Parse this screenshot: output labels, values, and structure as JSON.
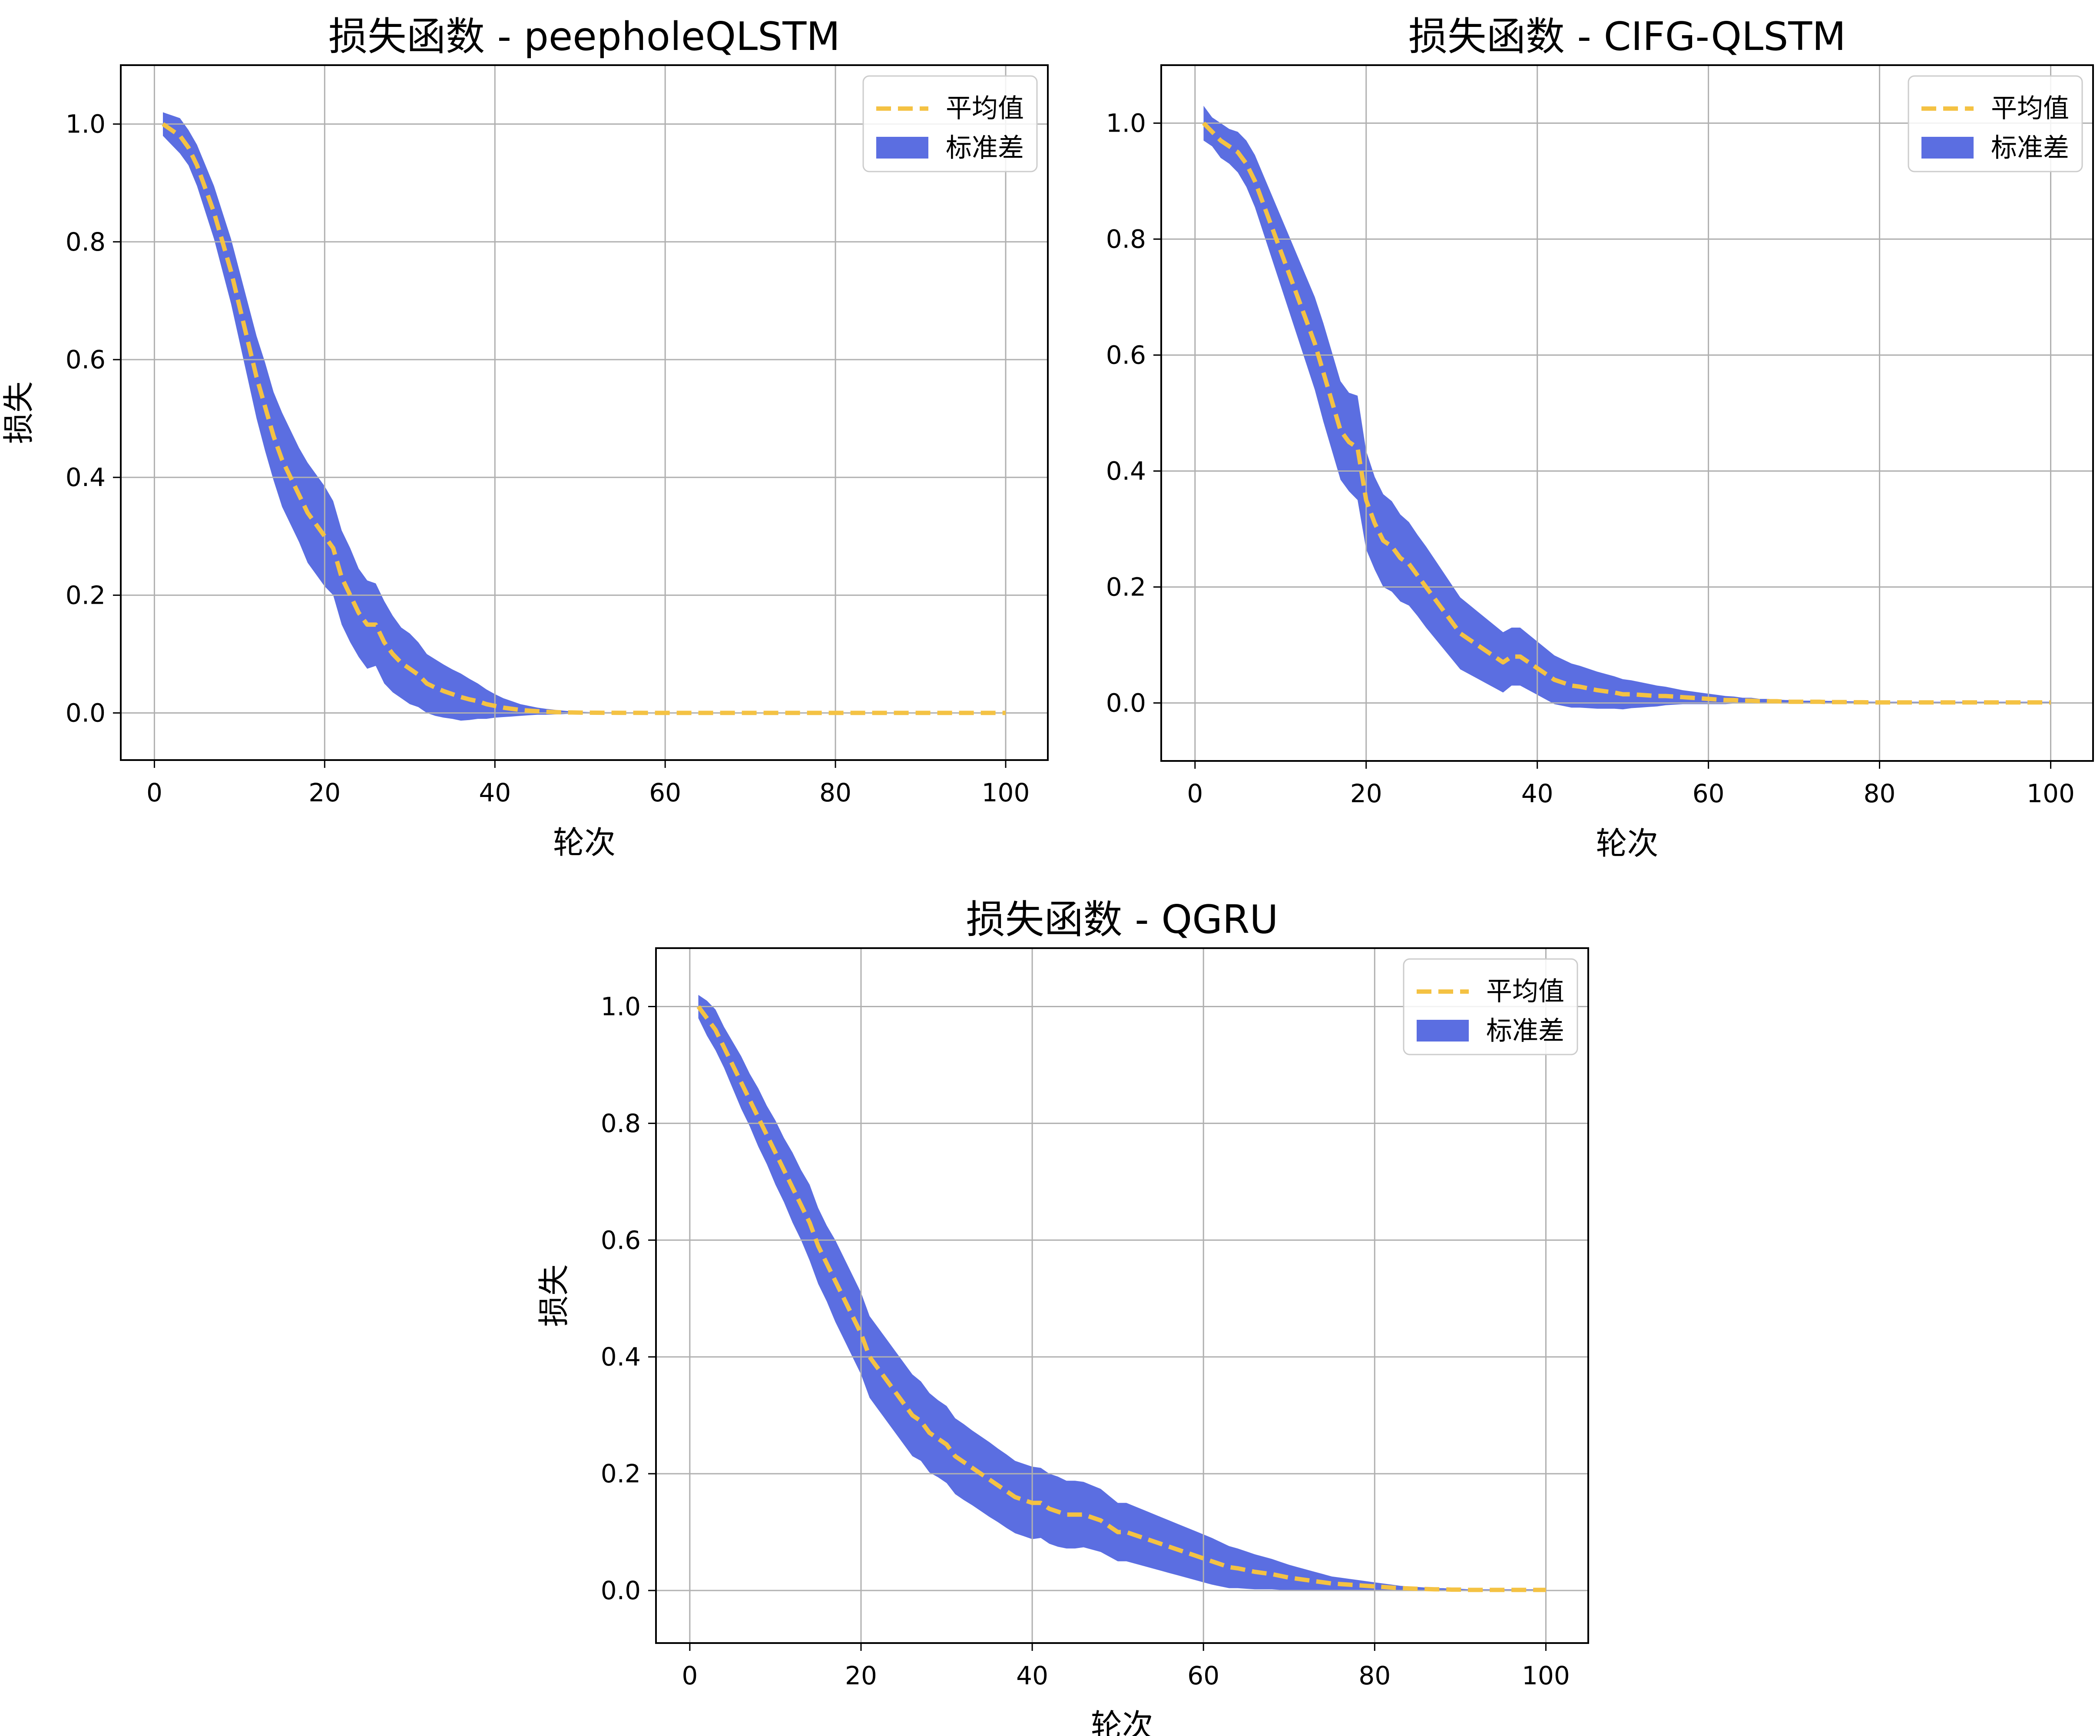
{
  "figure": {
    "band_color": "#5b6ee1",
    "mean_color": "#f4c243",
    "grid_color": "#b0b0b0"
  },
  "chart_data": [
    {
      "type": "line",
      "title": "损失函数 - peepholeQLSTM",
      "xlabel": "轮次",
      "ylabel": "损失",
      "xlim": [
        -3.95,
        104.95
      ],
      "ylim": [
        -0.08,
        1.1
      ],
      "xticks": [
        0,
        20,
        40,
        60,
        80,
        100
      ],
      "xtick_labels": [
        "0",
        "20",
        "40",
        "60",
        "80",
        "100"
      ],
      "yticks": [
        0.0,
        0.2,
        0.4,
        0.6,
        0.8,
        1.0
      ],
      "ytick_labels": [
        "0.0",
        "0.2",
        "0.4",
        "0.6",
        "0.8",
        "1.0"
      ],
      "grid": true,
      "legend_position": "top-right",
      "legend": {
        "mean_label": "平均值",
        "std_label": "标准差"
      },
      "x_start": 1,
      "x_end": 100,
      "mean": [
        1.0,
        0.99,
        0.98,
        0.96,
        0.93,
        0.89,
        0.85,
        0.8,
        0.75,
        0.69,
        0.63,
        0.57,
        0.52,
        0.47,
        0.43,
        0.4,
        0.37,
        0.34,
        0.32,
        0.3,
        0.28,
        0.23,
        0.2,
        0.17,
        0.15,
        0.15,
        0.12,
        0.1,
        0.085,
        0.075,
        0.065,
        0.05,
        0.043,
        0.037,
        0.032,
        0.027,
        0.023,
        0.02,
        0.015,
        0.012,
        0.009,
        0.007,
        0.005,
        0.004,
        0.003,
        0.002,
        0.0015,
        0.001,
        0.0008,
        0.0006,
        0.0005,
        0.0004,
        0.0003,
        0.0003,
        0.0002,
        0.0002,
        0.0002,
        0.0001,
        0.0001,
        0.0001,
        0.0001,
        0.0001,
        0.0001,
        0.0001,
        0.0001,
        0.0001,
        0.0001,
        0.0001,
        0.0001,
        0.0001,
        0.0001,
        0.0001,
        0.0001,
        0.0001,
        0.0001,
        0.0001,
        0.0001,
        0.0001,
        0.0001,
        0.0001,
        0.0001,
        0.0001,
        0.0001,
        0.0001,
        0.0001,
        0.0001,
        0.0001,
        0.0001,
        0.0001,
        0.0001,
        0.0001,
        0.0001,
        0.0001,
        0.0001,
        0.0001,
        0.0001,
        0.0001,
        0.0001,
        0.0001,
        0.0001
      ],
      "std": [
        0.02,
        0.025,
        0.03,
        0.03,
        0.035,
        0.04,
        0.045,
        0.05,
        0.055,
        0.06,
        0.065,
        0.07,
        0.075,
        0.075,
        0.08,
        0.08,
        0.08,
        0.085,
        0.085,
        0.085,
        0.08,
        0.08,
        0.08,
        0.075,
        0.075,
        0.07,
        0.07,
        0.065,
        0.06,
        0.06,
        0.055,
        0.05,
        0.048,
        0.045,
        0.042,
        0.04,
        0.035,
        0.03,
        0.025,
        0.02,
        0.016,
        0.013,
        0.01,
        0.008,
        0.006,
        0.005,
        0.004,
        0.003,
        0.002,
        0.0015,
        0.001,
        0.001,
        0.001,
        0.001,
        0.001,
        0.001,
        0.001,
        0.001,
        0.001,
        0.001,
        0.001,
        0.001,
        0.001,
        0.001,
        0.001,
        0.001,
        0.001,
        0.001,
        0.001,
        0.001,
        0.001,
        0.001,
        0.001,
        0.001,
        0.001,
        0.001,
        0.001,
        0.001,
        0.001,
        0.001,
        0.001,
        0.001,
        0.001,
        0.001,
        0.001,
        0.001,
        0.001,
        0.001,
        0.001,
        0.001,
        0.001,
        0.001,
        0.001,
        0.001,
        0.001,
        0.001,
        0.001,
        0.001,
        0.001,
        0.001
      ]
    },
    {
      "type": "line",
      "title": "损失函数 - CIFG-QLSTM",
      "xlabel": "轮次",
      "ylabel": "",
      "xlim": [
        -3.95,
        104.95
      ],
      "ylim": [
        -0.1,
        1.1
      ],
      "xticks": [
        0,
        20,
        40,
        60,
        80,
        100
      ],
      "xtick_labels": [
        "0",
        "20",
        "40",
        "60",
        "80",
        "100"
      ],
      "yticks": [
        0.0,
        0.2,
        0.4,
        0.6,
        0.8,
        1.0
      ],
      "ytick_labels": [
        "0.0",
        "0.2",
        "0.4",
        "0.6",
        "0.8",
        "1.0"
      ],
      "grid": true,
      "legend_position": "top-right",
      "legend": {
        "mean_label": "平均值",
        "std_label": "标准差"
      },
      "x_start": 1,
      "x_end": 100,
      "mean": [
        1.0,
        0.985,
        0.97,
        0.96,
        0.95,
        0.93,
        0.9,
        0.86,
        0.82,
        0.78,
        0.74,
        0.7,
        0.66,
        0.62,
        0.57,
        0.52,
        0.47,
        0.45,
        0.44,
        0.35,
        0.31,
        0.28,
        0.27,
        0.25,
        0.24,
        0.22,
        0.2,
        0.18,
        0.16,
        0.14,
        0.12,
        0.11,
        0.1,
        0.09,
        0.08,
        0.07,
        0.08,
        0.08,
        0.07,
        0.06,
        0.05,
        0.04,
        0.035,
        0.03,
        0.028,
        0.025,
        0.022,
        0.02,
        0.018,
        0.015,
        0.015,
        0.014,
        0.013,
        0.012,
        0.012,
        0.011,
        0.01,
        0.009,
        0.008,
        0.007,
        0.006,
        0.005,
        0.005,
        0.004,
        0.004,
        0.003,
        0.003,
        0.003,
        0.002,
        0.002,
        0.002,
        0.002,
        0.002,
        0.0015,
        0.0015,
        0.0015,
        0.0012,
        0.0012,
        0.001,
        0.001,
        0.001,
        0.001,
        0.001,
        0.001,
        0.001,
        0.001,
        0.001,
        0.001,
        0.001,
        0.001,
        0.001,
        0.001,
        0.001,
        0.001,
        0.001,
        0.001,
        0.001,
        0.001,
        0.001,
        0.001
      ],
      "std": [
        0.03,
        0.025,
        0.03,
        0.03,
        0.035,
        0.04,
        0.045,
        0.05,
        0.055,
        0.06,
        0.065,
        0.07,
        0.075,
        0.08,
        0.085,
        0.085,
        0.085,
        0.085,
        0.09,
        0.085,
        0.08,
        0.08,
        0.078,
        0.075,
        0.072,
        0.07,
        0.07,
        0.068,
        0.066,
        0.064,
        0.062,
        0.06,
        0.058,
        0.056,
        0.054,
        0.052,
        0.05,
        0.05,
        0.048,
        0.046,
        0.044,
        0.042,
        0.04,
        0.038,
        0.036,
        0.034,
        0.032,
        0.03,
        0.028,
        0.026,
        0.024,
        0.022,
        0.02,
        0.018,
        0.016,
        0.014,
        0.012,
        0.011,
        0.01,
        0.009,
        0.008,
        0.007,
        0.006,
        0.005,
        0.005,
        0.004,
        0.004,
        0.003,
        0.003,
        0.003,
        0.002,
        0.002,
        0.002,
        0.002,
        0.002,
        0.0015,
        0.0015,
        0.0012,
        0.0012,
        0.001,
        0.001,
        0.001,
        0.001,
        0.001,
        0.001,
        0.001,
        0.001,
        0.001,
        0.001,
        0.001,
        0.001,
        0.001,
        0.001,
        0.001,
        0.001,
        0.001,
        0.001,
        0.001,
        0.001,
        0.001
      ]
    },
    {
      "type": "line",
      "title": "损失函数 - QGRU",
      "xlabel": "轮次",
      "ylabel": "损失",
      "xlim": [
        -3.95,
        104.95
      ],
      "ylim": [
        -0.09,
        1.1
      ],
      "xticks": [
        0,
        20,
        40,
        60,
        80,
        100
      ],
      "xtick_labels": [
        "0",
        "20",
        "40",
        "60",
        "80",
        "100"
      ],
      "yticks": [
        0.0,
        0.2,
        0.4,
        0.6,
        0.8,
        1.0
      ],
      "ytick_labels": [
        "0.0",
        "0.2",
        "0.4",
        "0.6",
        "0.8",
        "1.0"
      ],
      "grid": true,
      "legend_position": "top-right",
      "legend": {
        "mean_label": "平均值",
        "std_label": "标准差"
      },
      "x_start": 1,
      "x_end": 100,
      "mean": [
        1.0,
        0.98,
        0.96,
        0.93,
        0.9,
        0.87,
        0.84,
        0.81,
        0.78,
        0.75,
        0.72,
        0.69,
        0.66,
        0.63,
        0.59,
        0.56,
        0.53,
        0.5,
        0.47,
        0.44,
        0.4,
        0.38,
        0.36,
        0.34,
        0.32,
        0.3,
        0.29,
        0.27,
        0.26,
        0.25,
        0.23,
        0.22,
        0.21,
        0.2,
        0.19,
        0.18,
        0.17,
        0.16,
        0.155,
        0.15,
        0.15,
        0.14,
        0.135,
        0.13,
        0.13,
        0.13,
        0.125,
        0.12,
        0.11,
        0.1,
        0.1,
        0.095,
        0.09,
        0.085,
        0.08,
        0.075,
        0.07,
        0.065,
        0.06,
        0.055,
        0.05,
        0.045,
        0.04,
        0.038,
        0.035,
        0.032,
        0.03,
        0.028,
        0.025,
        0.022,
        0.02,
        0.018,
        0.016,
        0.014,
        0.012,
        0.011,
        0.01,
        0.009,
        0.008,
        0.007,
        0.006,
        0.005,
        0.004,
        0.0035,
        0.003,
        0.0025,
        0.002,
        0.002,
        0.0015,
        0.0015,
        0.001,
        0.001,
        0.001,
        0.001,
        0.001,
        0.001,
        0.001,
        0.001,
        0.001,
        0.001
      ],
      "std": [
        0.02,
        0.03,
        0.035,
        0.035,
        0.04,
        0.045,
        0.045,
        0.05,
        0.05,
        0.055,
        0.055,
        0.06,
        0.06,
        0.065,
        0.065,
        0.065,
        0.07,
        0.07,
        0.07,
        0.07,
        0.07,
        0.07,
        0.07,
        0.07,
        0.07,
        0.07,
        0.068,
        0.068,
        0.066,
        0.066,
        0.065,
        0.065,
        0.064,
        0.064,
        0.064,
        0.063,
        0.063,
        0.062,
        0.062,
        0.062,
        0.06,
        0.06,
        0.06,
        0.058,
        0.058,
        0.056,
        0.055,
        0.054,
        0.052,
        0.05,
        0.05,
        0.049,
        0.048,
        0.047,
        0.046,
        0.045,
        0.044,
        0.043,
        0.042,
        0.041,
        0.04,
        0.038,
        0.036,
        0.034,
        0.032,
        0.03,
        0.028,
        0.026,
        0.024,
        0.022,
        0.02,
        0.018,
        0.016,
        0.014,
        0.012,
        0.011,
        0.01,
        0.009,
        0.008,
        0.007,
        0.006,
        0.005,
        0.004,
        0.0035,
        0.003,
        0.0025,
        0.002,
        0.002,
        0.0015,
        0.0015,
        0.001,
        0.001,
        0.001,
        0.001,
        0.001,
        0.001,
        0.001,
        0.001,
        0.001,
        0.001
      ]
    }
  ]
}
